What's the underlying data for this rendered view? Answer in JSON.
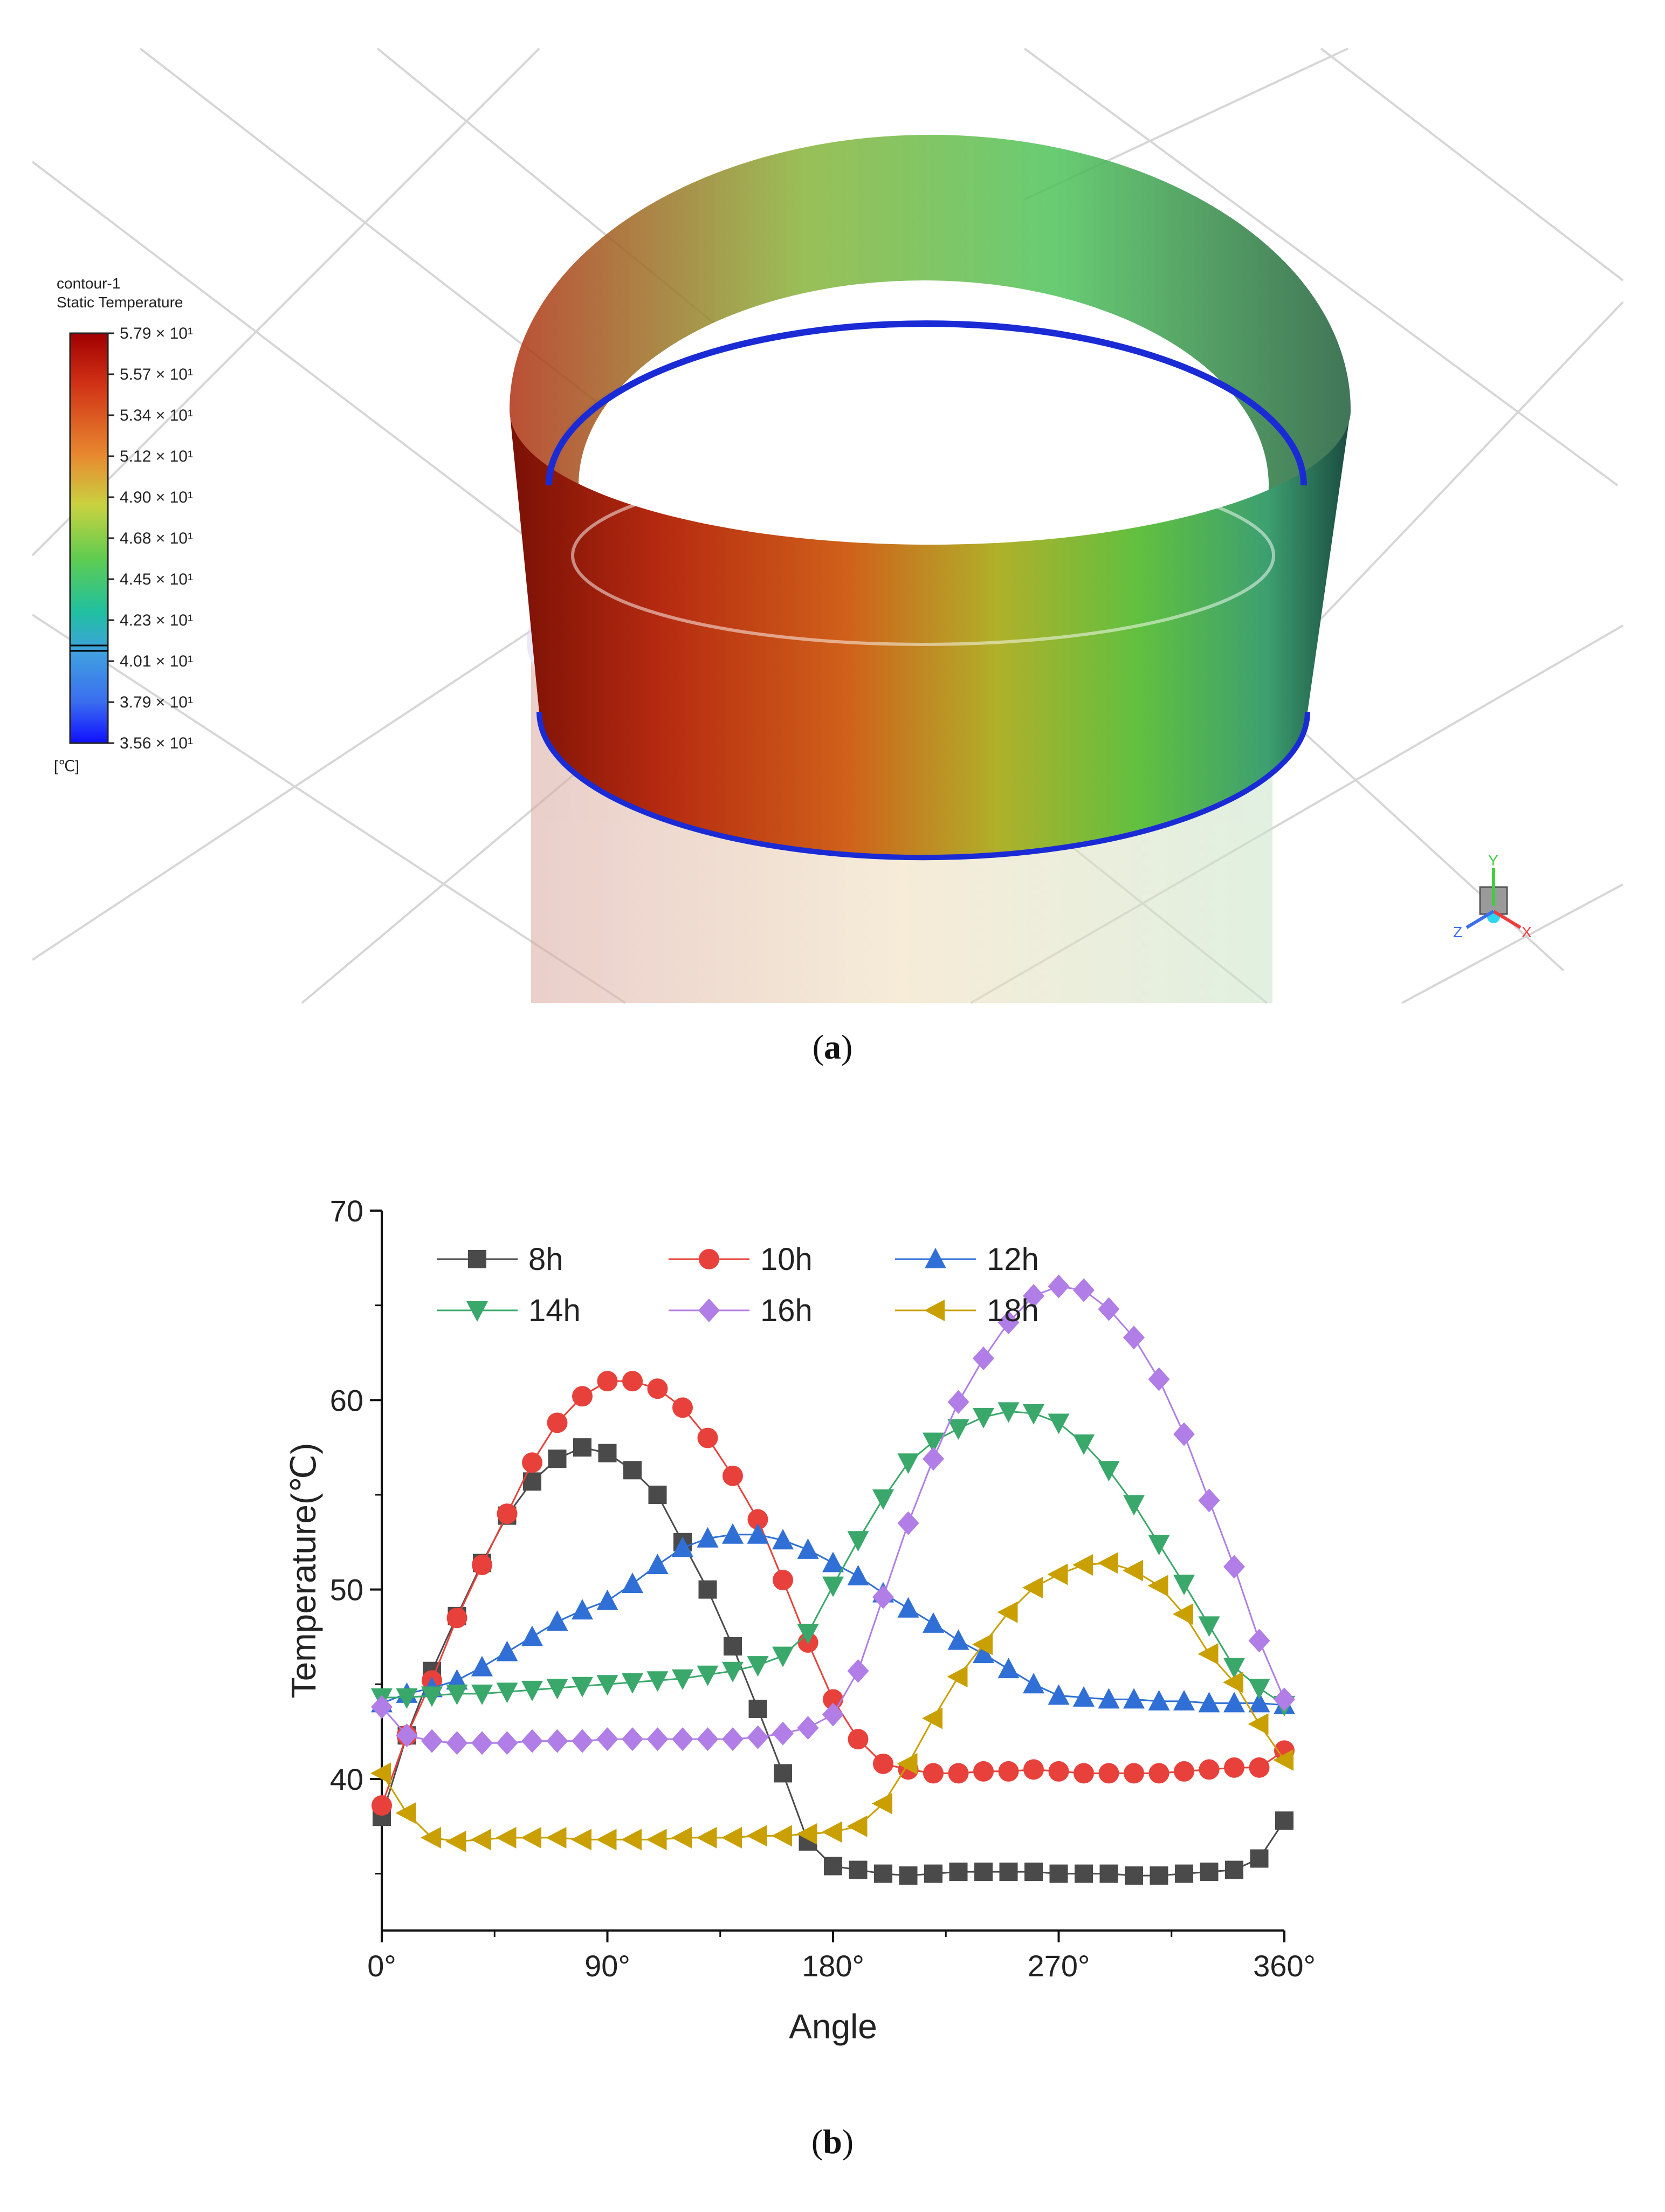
{
  "panel_a": {
    "legend_title_line1": "contour-1",
    "legend_title_line2": "Static Temperature",
    "legend_ticks": [
      "5.79 × 10¹",
      "5.57 × 10¹",
      "5.34 × 10¹",
      "5.12 × 10¹",
      "4.90 × 10¹",
      "4.68 × 10¹",
      "4.45 × 10¹",
      "4.23 × 10¹",
      "4.01 × 10¹",
      "3.79 × 10¹",
      "3.56 × 10¹"
    ],
    "legend_unit": "[℃]",
    "axis_x": "X",
    "axis_y": "Y",
    "axis_z": "Z",
    "colors": {
      "hot": "#8b0f05",
      "mid": "#5fbf3a",
      "cold": "#1a2bd6"
    }
  },
  "caption_a": {
    "open": "(",
    "letter": "a",
    "close": ")"
  },
  "caption_b": {
    "open": "(",
    "letter": "b",
    "close": ")"
  },
  "chart_data": {
    "type": "line",
    "title": "",
    "xlabel": "Angle",
    "ylabel": "Temperature(℃)",
    "xlim": [
      0,
      360
    ],
    "ylim": [
      32,
      70
    ],
    "x_ticks": [
      0,
      90,
      180,
      270,
      360
    ],
    "x_tick_labels": [
      "0°",
      "90°",
      "180°",
      "270°",
      "360°"
    ],
    "y_ticks": [
      40,
      50,
      60,
      70
    ],
    "y_tick_labels": [
      "40",
      "50",
      "60",
      "70"
    ],
    "legend_placement": "top-left",
    "x": [
      0,
      10,
      20,
      30,
      40,
      50,
      60,
      70,
      80,
      90,
      100,
      110,
      120,
      130,
      140,
      150,
      160,
      170,
      180,
      190,
      200,
      210,
      220,
      230,
      240,
      250,
      260,
      270,
      280,
      290,
      300,
      310,
      320,
      330,
      340,
      350,
      360
    ],
    "series": [
      {
        "name": "8h",
        "color": "#4a4a4a",
        "marker": "square",
        "values": [
          38.0,
          42.3,
          45.7,
          48.6,
          51.4,
          53.9,
          55.7,
          56.9,
          57.5,
          57.2,
          56.3,
          55.0,
          52.5,
          50.0,
          47.0,
          43.7,
          40.3,
          36.7,
          35.4,
          35.2,
          35.0,
          34.9,
          35.0,
          35.1,
          35.1,
          35.1,
          35.1,
          35.0,
          35.0,
          35.0,
          34.9,
          34.9,
          35.0,
          35.1,
          35.2,
          35.8,
          37.8
        ]
      },
      {
        "name": "10h",
        "color": "#e8403a",
        "marker": "circle",
        "values": [
          38.6,
          42.3,
          45.2,
          48.5,
          51.3,
          54.0,
          56.7,
          58.8,
          60.2,
          61.0,
          61.0,
          60.6,
          59.6,
          58.0,
          56.0,
          53.7,
          50.5,
          47.2,
          44.2,
          42.1,
          40.8,
          40.5,
          40.3,
          40.3,
          40.4,
          40.4,
          40.5,
          40.4,
          40.3,
          40.3,
          40.3,
          40.3,
          40.4,
          40.5,
          40.6,
          40.6,
          41.5
        ]
      },
      {
        "name": "12h",
        "color": "#2f6fd6",
        "marker": "triangle-up",
        "values": [
          44.0,
          44.5,
          44.8,
          45.2,
          45.9,
          46.7,
          47.5,
          48.3,
          48.9,
          49.4,
          50.3,
          51.3,
          52.2,
          52.7,
          52.9,
          52.9,
          52.6,
          52.1,
          51.4,
          50.7,
          49.8,
          49.0,
          48.2,
          47.3,
          46.6,
          45.8,
          45.0,
          44.4,
          44.3,
          44.2,
          44.2,
          44.1,
          44.1,
          44.0,
          44.0,
          44.0,
          43.9
        ]
      },
      {
        "name": "14h",
        "color": "#3aa86a",
        "marker": "triangle-down",
        "values": [
          44.3,
          44.3,
          44.4,
          44.5,
          44.5,
          44.6,
          44.7,
          44.8,
          44.9,
          45.0,
          45.1,
          45.2,
          45.3,
          45.5,
          45.7,
          46.0,
          46.5,
          47.7,
          50.2,
          52.6,
          54.8,
          56.7,
          57.8,
          58.5,
          59.1,
          59.4,
          59.3,
          58.8,
          57.7,
          56.3,
          54.5,
          52.4,
          50.3,
          48.1,
          45.9,
          44.8,
          43.9
        ]
      },
      {
        "name": "16h",
        "color": "#b07ee6",
        "marker": "diamond",
        "values": [
          43.8,
          42.3,
          42.0,
          41.9,
          41.9,
          41.9,
          42.0,
          42.0,
          42.0,
          42.1,
          42.1,
          42.1,
          42.1,
          42.1,
          42.1,
          42.2,
          42.4,
          42.7,
          43.4,
          45.7,
          49.6,
          53.5,
          56.9,
          59.9,
          62.2,
          64.1,
          65.5,
          66.0,
          65.8,
          64.8,
          63.3,
          61.1,
          58.2,
          54.7,
          51.2,
          47.3,
          44.2
        ]
      },
      {
        "name": "18h",
        "color": "#c9a000",
        "marker": "triangle-left",
        "values": [
          40.3,
          38.2,
          36.9,
          36.7,
          36.8,
          36.9,
          36.9,
          36.9,
          36.8,
          36.8,
          36.8,
          36.8,
          36.9,
          36.9,
          36.9,
          37.0,
          37.0,
          37.1,
          37.2,
          37.5,
          38.7,
          40.8,
          43.2,
          45.4,
          47.1,
          48.8,
          50.1,
          50.8,
          51.3,
          51.4,
          51.0,
          50.2,
          48.7,
          46.6,
          45.1,
          42.9,
          41.0
        ]
      }
    ]
  }
}
